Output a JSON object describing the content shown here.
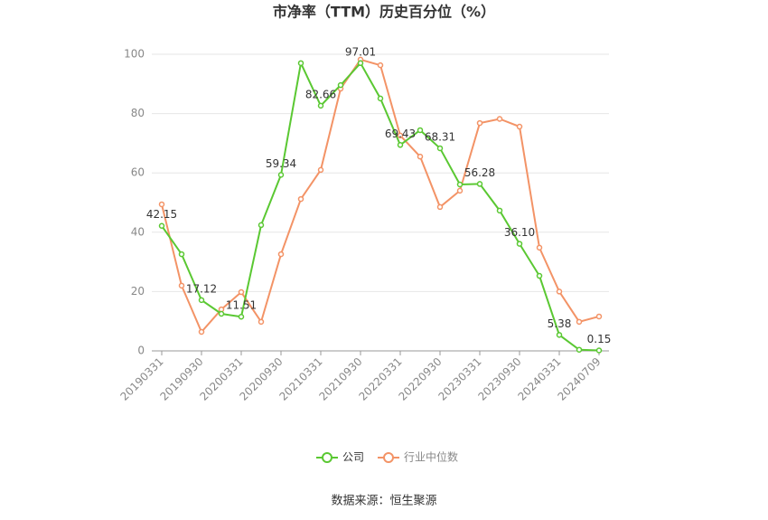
{
  "chart_data": {
    "type": "line",
    "title": "市净率（TTM）历史百分位（%）",
    "source": "数据来源：恒生聚源",
    "categories": [
      "20190331",
      null,
      "20190930",
      null,
      "20200331",
      null,
      "20200930",
      null,
      "20210331",
      null,
      "20210930",
      null,
      "20220331",
      null,
      "20220930",
      null,
      "20230331",
      null,
      "20230930",
      null,
      "20240331",
      null,
      "20240709"
    ],
    "series": [
      {
        "name": "公司",
        "color": "#5ac832",
        "values": [
          42.15,
          32.6,
          17.12,
          12.5,
          11.51,
          42.4,
          59.34,
          97.0,
          82.66,
          89.6,
          97.01,
          85.1,
          69.43,
          74.4,
          68.31,
          56.1,
          56.28,
          47.3,
          36.1,
          25.3,
          5.38,
          0.4,
          0.15
        ],
        "value_labels": [
          "42.15",
          null,
          "17.12",
          null,
          "11.51",
          null,
          "59.34",
          null,
          "82.66",
          null,
          "97.01",
          null,
          "69.43",
          null,
          "68.31",
          null,
          "56.28",
          null,
          "36.10",
          null,
          "5.38",
          null,
          "0.15"
        ]
      },
      {
        "name": "行业中位数",
        "color": "#f39366",
        "values": [
          49.4,
          22.0,
          6.4,
          14.0,
          19.8,
          9.8,
          32.6,
          51.2,
          61.0,
          88.4,
          98.2,
          96.3,
          72.6,
          65.5,
          48.5,
          54.0,
          76.8,
          78.2,
          75.6,
          34.8,
          20.0,
          9.8,
          11.6
        ]
      }
    ],
    "ylim": [
      0,
      100
    ],
    "yticks": [
      0,
      20,
      40,
      60,
      80,
      100
    ],
    "grid": true
  }
}
